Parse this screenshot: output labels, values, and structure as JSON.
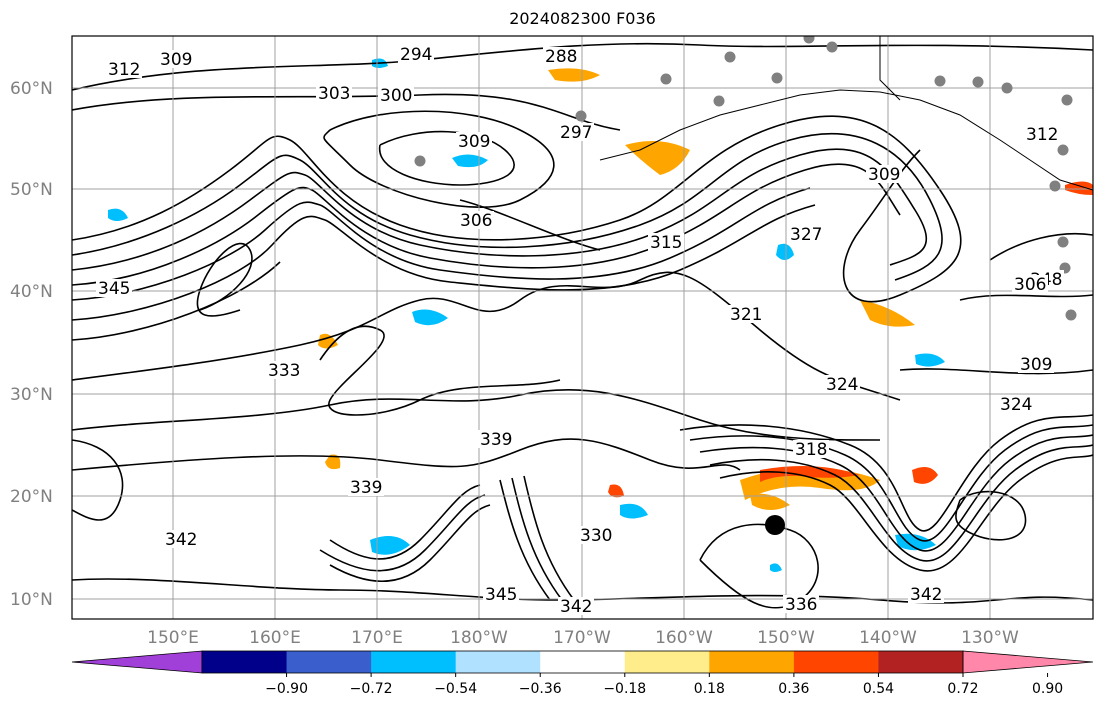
{
  "title": "2024082300 F036",
  "axes": {
    "lat_labels": [
      "60°N",
      "50°N",
      "40°N",
      "30°N",
      "20°N",
      "10°N"
    ],
    "lon_labels": [
      "150°E",
      "160°E",
      "170°E",
      "180°W",
      "170°W",
      "160°W",
      "150°W",
      "140°W",
      "130°W"
    ]
  },
  "colorbar": {
    "colors": [
      "#a040d8",
      "#00008b",
      "#3a5fcd",
      "#00bfff",
      "#b0e2ff",
      "#ffffff",
      "#ffec8b",
      "#ffa500",
      "#ff4500",
      "#b22222",
      "#ff88aa"
    ],
    "tick_labels": [
      "−0.90",
      "−0.72",
      "−0.54",
      "−0.36",
      "−0.18",
      "0.18",
      "0.36",
      "0.54",
      "0.72",
      "0.90"
    ]
  },
  "contour_labels": [
    "294",
    "288",
    "303",
    "300",
    "297",
    "309",
    "312",
    "306",
    "315",
    "327",
    "345",
    "339",
    "333",
    "321",
    "324",
    "318",
    "330",
    "336",
    "342",
    "348"
  ],
  "station_marker_color": "#808080",
  "storm_marker_color": "#000000"
}
